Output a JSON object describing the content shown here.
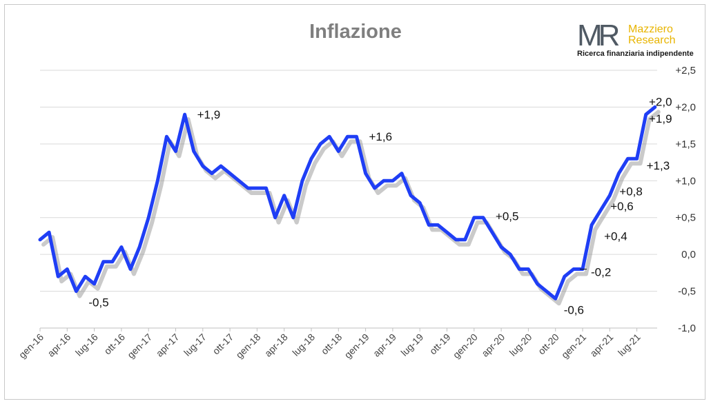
{
  "title": "Inflazione",
  "logo": {
    "mark": "MR",
    "name_line1": "Mazziero",
    "name_line2": "Research",
    "tagline": "Ricerca finanziaria indipendente"
  },
  "colors": {
    "line": "#1f3ef5",
    "shadow": "#8a8a8a",
    "grid": "#d9d9d9",
    "title": "#7f7f7f"
  },
  "chart_data": {
    "type": "line",
    "title": "Inflazione",
    "xlabel": "",
    "ylabel": "",
    "ylim": [
      -1.0,
      2.5
    ],
    "yticks": [
      "+2,5",
      "+2,0",
      "+1,5",
      "+1,0",
      "+0,5",
      "0,0",
      "-0,5",
      "-1,0"
    ],
    "ytick_values": [
      2.5,
      2.0,
      1.5,
      1.0,
      0.5,
      0.0,
      -0.5,
      -1.0
    ],
    "grid": true,
    "y_axis_side": "right",
    "xtick_labels": [
      "gen-16",
      "apr-16",
      "lug-16",
      "ott-16",
      "gen-17",
      "apr-17",
      "lug-17",
      "ott-17",
      "gen-18",
      "apr-18",
      "lug-18",
      "ott-18",
      "gen-19",
      "apr-19",
      "lug-19",
      "ott-19",
      "gen-20",
      "apr-20",
      "lug-20",
      "ott-20",
      "gen-21",
      "apr-21",
      "lug-21"
    ],
    "series": [
      {
        "values": [
          0.2,
          0.3,
          -0.3,
          -0.2,
          -0.5,
          -0.3,
          -0.4,
          -0.1,
          -0.1,
          0.1,
          -0.2,
          0.1,
          0.5,
          1.0,
          1.6,
          1.4,
          1.9,
          1.4,
          1.2,
          1.1,
          1.2,
          1.1,
          1.0,
          0.9,
          0.9,
          0.9,
          0.5,
          0.8,
          0.5,
          1.0,
          1.3,
          1.5,
          1.6,
          1.4,
          1.6,
          1.6,
          1.1,
          0.9,
          1.0,
          1.0,
          1.1,
          0.8,
          0.7,
          0.4,
          0.4,
          0.3,
          0.2,
          0.2,
          0.5,
          0.5,
          0.3,
          0.1,
          0.0,
          -0.2,
          -0.2,
          -0.4,
          -0.5,
          -0.6,
          -0.3,
          -0.2,
          -0.2,
          0.4,
          0.6,
          0.8,
          1.1,
          1.3,
          1.3,
          1.9,
          2.0
        ]
      }
    ],
    "annotations": [
      {
        "text": "-0,5",
        "index": 4
      },
      {
        "text": "+1,9",
        "index": 16
      },
      {
        "text": "+1,6",
        "index": 35
      },
      {
        "text": "+0,5",
        "index": 49
      },
      {
        "text": "-0,6",
        "index": 57
      },
      {
        "text": "-0,2",
        "index": 60
      },
      {
        "text": "+0,4",
        "index": 61
      },
      {
        "text": "+0,6",
        "index": 62
      },
      {
        "text": "+0,8",
        "index": 63
      },
      {
        "text": "+1,3",
        "index": 66
      },
      {
        "text": "+1,9",
        "index": 67
      },
      {
        "text": "+2,0",
        "index": 68
      }
    ]
  }
}
